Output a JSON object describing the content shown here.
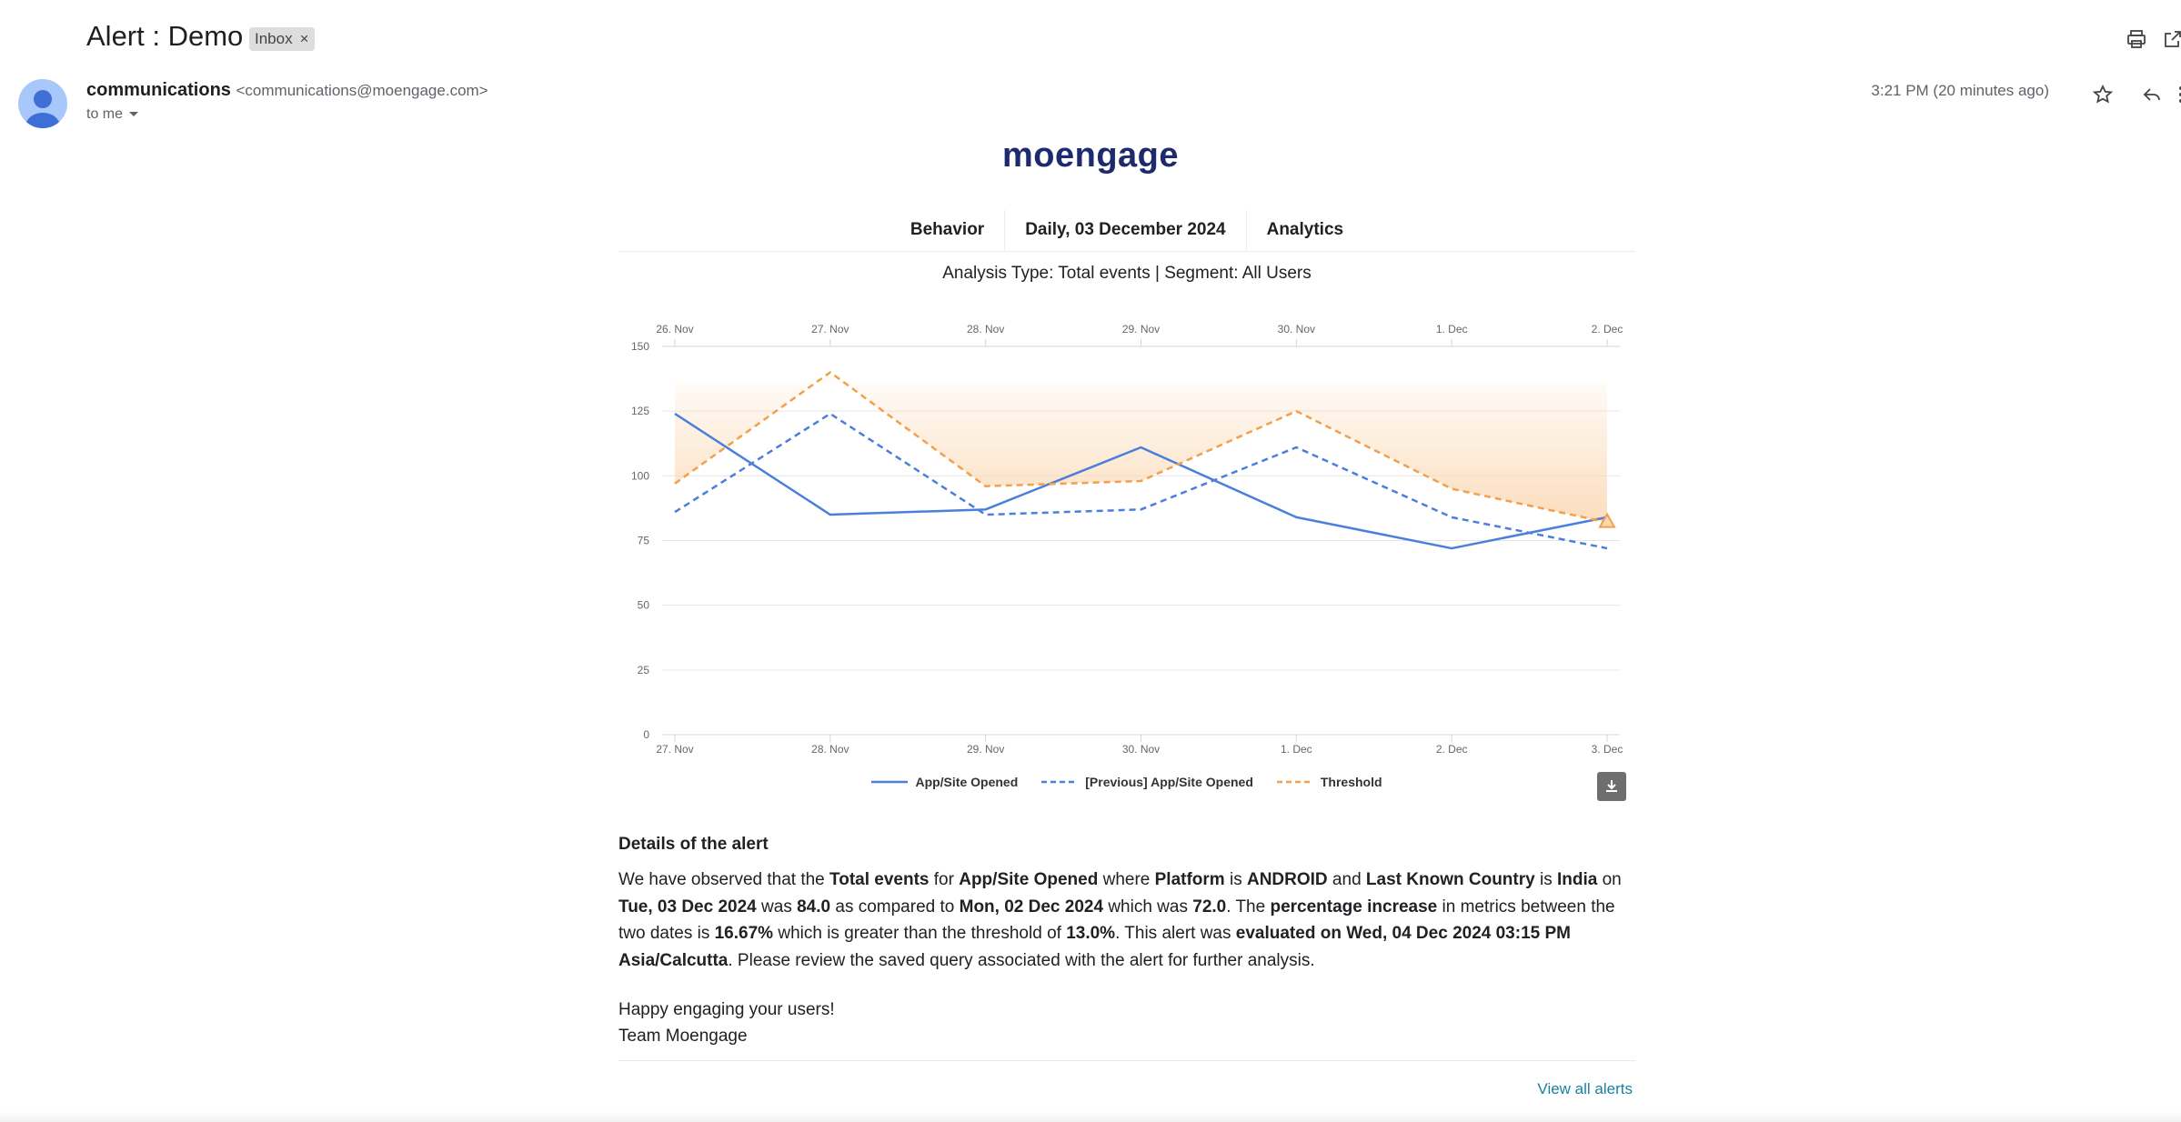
{
  "email": {
    "subject": "Alert : Demo",
    "label": "Inbox",
    "label_close": "×",
    "sender_name": "communications",
    "sender_address": "<communications@moengage.com>",
    "recipient": "to me",
    "time": "3:21 PM (20 minutes ago)"
  },
  "body": {
    "logo": "moengage",
    "tabs": [
      "Behavior",
      "Daily, 03 December 2024",
      "Analytics"
    ],
    "analysis_line": "Analysis Type: Total events | Segment: All Users",
    "details_heading": "Details of the alert",
    "p": {
      "t1": "We have observed that the ",
      "b1": "Total events",
      "t2": " for ",
      "b2": "App/Site Opened",
      "t3": " where ",
      "b3": "Platform",
      "t4": " is ",
      "b4": "ANDROID",
      "t5": " and ",
      "b5": "Last Known Country",
      "t6": " is ",
      "b6": "India",
      "t7": " on ",
      "b7": "Tue, 03 Dec 2024",
      "t8": " was ",
      "b8": "84.0",
      "t9": " as compared to ",
      "b9": "Mon, 02 Dec 2024",
      "t10": " which was ",
      "b10": "72.0",
      "t11": ". The ",
      "b11": "percentage increase",
      "t12": " in metrics between the two dates is ",
      "b12": "16.67%",
      "t13": " which is greater than the threshold of ",
      "b13": "13.0%",
      "t14": ". This alert was ",
      "b14": "evaluated on Wed, 04 Dec 2024 03:15 PM Asia/Calcutta",
      "t15": ". Please review the saved query associated with the alert for further analysis."
    },
    "closing": "Happy engaging your users!",
    "signature": "Team Moengage",
    "view_all": "View all alerts"
  },
  "colors": {
    "current": "#4a7fdb",
    "previous": "#4a7fdb",
    "threshold": "#f2a04b",
    "threshold_fill": "#fbd9b5"
  },
  "chart_data": {
    "type": "line",
    "x": [
      "27. Nov",
      "28. Nov",
      "29. Nov",
      "30. Nov",
      "1. Dec",
      "2. Dec",
      "3. Dec"
    ],
    "x_top": [
      "26. Nov",
      "27. Nov",
      "28. Nov",
      "29. Nov",
      "30. Nov",
      "1. Dec",
      "2. Dec"
    ],
    "yticks": [
      0,
      25,
      50,
      75,
      100,
      125,
      150
    ],
    "ylim": [
      0,
      150
    ],
    "series": [
      {
        "name": "App/Site Opened",
        "style": "solid",
        "values": [
          124,
          85,
          87,
          111,
          84,
          72,
          84
        ]
      },
      {
        "name": "[Previous] App/Site Opened",
        "style": "dashed",
        "values": [
          86,
          124,
          85,
          87,
          111,
          84,
          72
        ]
      },
      {
        "name": "Threshold",
        "style": "dashed",
        "values": [
          97,
          140,
          96,
          98,
          125,
          95,
          82
        ]
      }
    ],
    "grid": true,
    "legend": "bottom-center"
  }
}
